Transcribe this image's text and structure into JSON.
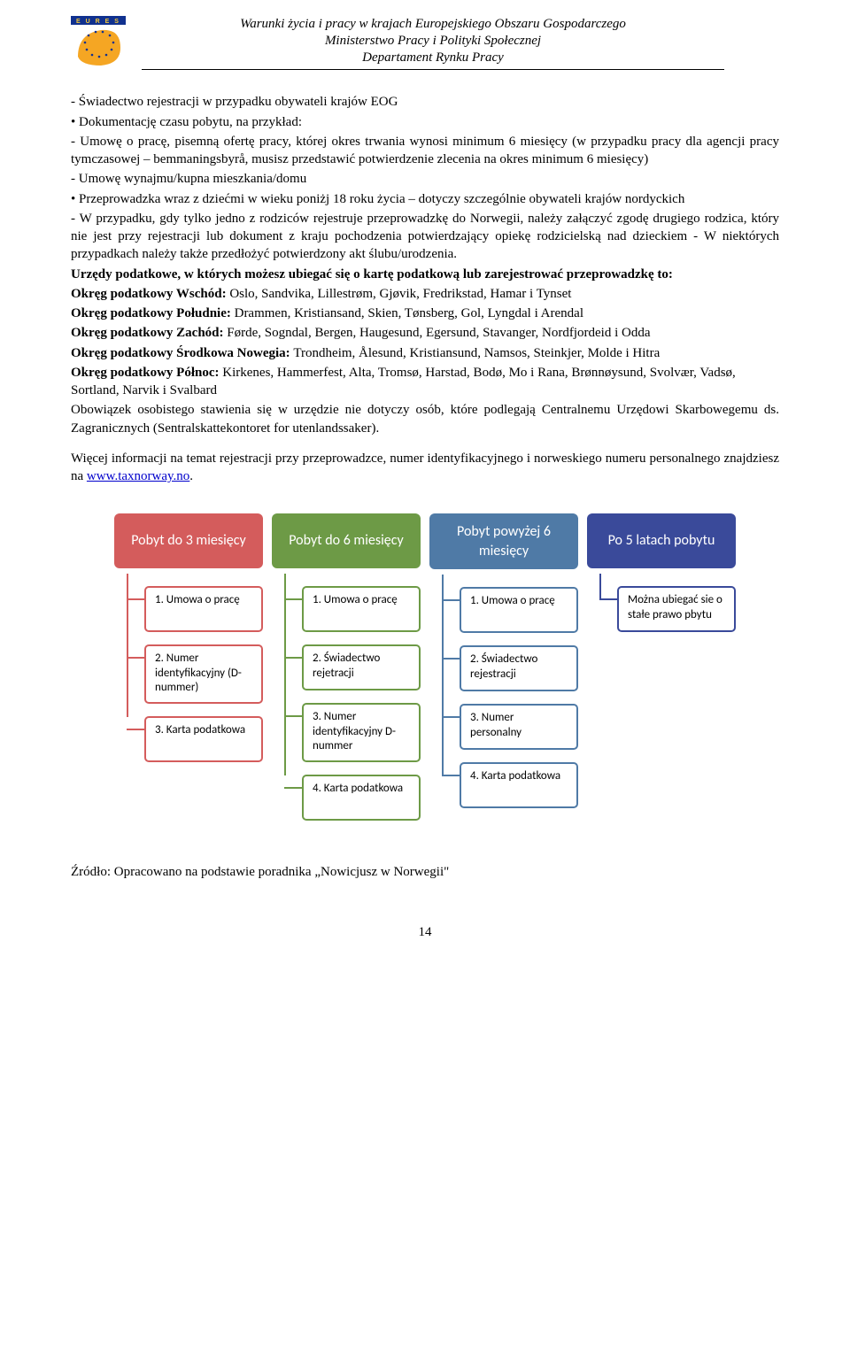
{
  "header": {
    "line1": "Warunki życia i pracy w krajach Europejskiego Obszaru Gospodarczego",
    "line2": "Ministerstwo Pracy i Polityki Społecznej",
    "line3": "Departament Rynku Pracy",
    "logo": {
      "glyph": "EURES",
      "stars_color": "#10318f",
      "hand_color": "#f5a623"
    }
  },
  "body": {
    "p1": "- Świadectwo rejestracji w przypadku obywateli krajów EOG",
    "p2": "• Dokumentację czasu pobytu, na przykład:",
    "p3": "- Umowę o pracę, pisemną ofertę pracy, której okres trwania wynosi minimum 6 miesięcy (w przypadku pracy dla agencji pracy tymczasowej – bemmaningsbyrå, musisz przedstawić potwierdzenie zlecenia na okres minimum 6 miesięcy)",
    "p4": "- Umowę wynajmu/kupna mieszkania/domu",
    "p5": "• Przeprowadzka wraz z dziećmi w wieku poniżj 18 roku życia – dotyczy szczególnie obywateli krajów nordyckich",
    "p6": "- W przypadku, gdy tylko jedno z rodziców rejestruje przeprowadzkę do Norwegii, należy załączyć zgodę drugiego rodzica, który nie jest przy rejestracji lub dokument z kraju pochodzenia potwierdzający opiekę rodzicielską nad dzieckiem - W niektórych przypadkach należy także przedłożyć potwierdzony akt ślubu/urodzenia.",
    "p7a": "Urzędy podatkowe, w których możesz ubiegać się o kartę podatkową lub zarejestrować przeprowadzkę to:",
    "p8_lbl": "Okręg podatkowy Wschód: ",
    "p8_txt": "Oslo, Sandvika, Lillestrøm, Gjøvik, Fredrikstad, Hamar i Tynset",
    "p9_lbl": "Okręg podatkowy Południe: ",
    "p9_txt": "Drammen, Kristiansand, Skien, Tønsberg, Gol, Lyngdal i Arendal",
    "p10_lbl": "Okręg podatkowy Zachód: ",
    "p10_txt": "Førde, Sogndal, Bergen, Haugesund, Egersund, Stavanger, Nordfjordeid i Odda",
    "p11_lbl": "Okręg podatkowy Środkowa Nowegia: ",
    "p11_txt": "Trondheim, Ålesund, Kristiansund, Namsos, Steinkjer, Molde i Hitra",
    "p12_lbl": "Okręg podatkowy Północ: ",
    "p12_txt": "Kirkenes, Hammerfest, Alta, Tromsø, Harstad, Bodø, Mo i Rana, Brønnøysund, Svolvær, Vadsø, Sortland, Narvik i Svalbard",
    "p13": "Obowiązek osobistego stawienia się w urzędzie nie dotyczy osób, które podlegają Centralnemu Urzędowi Skarbowegemu ds. Zagranicznych (Sentralskattekontoret for utenlandssaker).",
    "p14_a": "Więcej informacji na temat rejestracji przy przeprowadzce, numer identyfikacyjnego i norweskiego numeru personalnego znajdziesz na ",
    "p14_link": "www.taxnorway.no",
    "p14_b": "."
  },
  "infographic": {
    "columns": [
      {
        "head": "Pobyt do 3 miesięcy",
        "color": "#d45c5c",
        "items": [
          {
            "text": "1. Umowa o pracę"
          },
          {
            "text": "2. Numer identyfikacyjny (D-nummer)"
          },
          {
            "text": "3. Karta podatkowa"
          }
        ]
      },
      {
        "head": "Pobyt do 6 miesięcy",
        "color": "#6d9a46",
        "items": [
          {
            "text": "1. Umowa o pracę"
          },
          {
            "text": "2. Świadectwo rejetracji"
          },
          {
            "text": "3. Numer identyfikacyjny D-nummer"
          },
          {
            "text": "4. Karta podatkowa"
          }
        ]
      },
      {
        "head": "Pobyt powyżej 6 miesięcy",
        "color": "#4f7aa6",
        "items": [
          {
            "text": "1. Umowa o pracę"
          },
          {
            "text": "2. Świadectwo rejestracji"
          },
          {
            "text": "3. Numer personalny"
          },
          {
            "text": "4. Karta podatkowa"
          }
        ]
      },
      {
        "head": "Po 5 latach pobytu",
        "color": "#3a4a9a",
        "items": [
          {
            "text": "Można ubiegać sie o stałe prawo pbytu"
          }
        ]
      }
    ],
    "box_bg": "#ffffff",
    "font_family": "Calibri"
  },
  "footer": {
    "source": "Źródło: Opracowano na podstawie poradnika „Nowicjusz w Norwegii\"",
    "page": "14"
  }
}
